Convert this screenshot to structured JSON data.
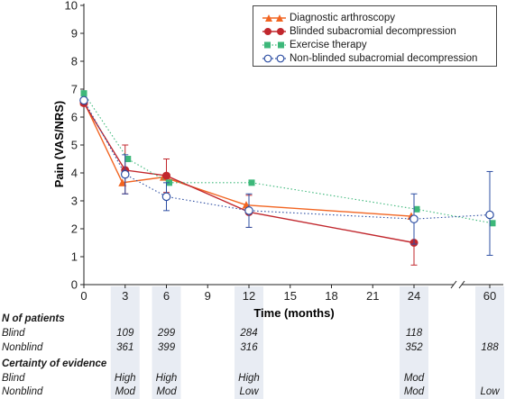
{
  "chart_data": {
    "type": "line",
    "xlabel": "Time (months)",
    "ylabel": "Pain (VAS/NRS)",
    "ylim": [
      0,
      10
    ],
    "yticks": [
      "0",
      "1",
      "2",
      "3",
      "4",
      "5",
      "6",
      "7",
      "8",
      "9",
      "10"
    ],
    "xticks": [
      "0",
      "3",
      "6",
      "9",
      "12",
      "15",
      "18",
      "21",
      "24",
      "60"
    ],
    "x_axis_break": "between 24 and 60",
    "grid": false,
    "legend_position": "top-right",
    "series": [
      {
        "name": "Diagnostic arthroscopy",
        "color": "#f26522",
        "marker": "triangle",
        "line": "solid",
        "points": [
          {
            "x": 0,
            "y": 6.55
          },
          {
            "x": 3,
            "y": 3.65
          },
          {
            "x": 6,
            "y": 3.85
          },
          {
            "x": 12,
            "y": 2.85
          },
          {
            "x": 24,
            "y": 2.45
          }
        ]
      },
      {
        "name": "Blinded subacromial decompression",
        "color": "#c1272d",
        "marker": "circle-filled",
        "line": "solid",
        "points": [
          {
            "x": 0,
            "y": 6.5,
            "err": [
              6.4,
              6.6
            ]
          },
          {
            "x": 3,
            "y": 4.1,
            "err": [
              3.25,
              5.0
            ]
          },
          {
            "x": 6,
            "y": 3.9,
            "err": [
              3.3,
              4.5
            ]
          },
          {
            "x": 12,
            "y": 2.6,
            "err": [
              2.05,
              3.2
            ]
          },
          {
            "x": 24,
            "y": 1.5,
            "err": [
              0.7,
              2.35
            ]
          }
        ]
      },
      {
        "name": "Exercise therapy",
        "color": "#3db87a",
        "marker": "square",
        "line": "dotted",
        "points": [
          {
            "x": 0,
            "y": 6.85
          },
          {
            "x": 3,
            "y": 4.5
          },
          {
            "x": 6,
            "y": 3.65
          },
          {
            "x": 12,
            "y": 3.65
          },
          {
            "x": 24,
            "y": 2.7
          },
          {
            "x": 60,
            "y": 2.2
          }
        ]
      },
      {
        "name": "Non-blinded subacromial decompression",
        "color": "#2e4fa3",
        "marker": "circle-open",
        "line": "dotted",
        "points": [
          {
            "x": 0,
            "y": 6.6
          },
          {
            "x": 3,
            "y": 3.95,
            "err": [
              3.25,
              4.65
            ]
          },
          {
            "x": 6,
            "y": 3.15,
            "err": [
              2.65,
              3.65
            ]
          },
          {
            "x": 12,
            "y": 2.65,
            "err": [
              2.05,
              3.25
            ]
          },
          {
            "x": 24,
            "y": 2.35,
            "err": [
              1.45,
              3.25
            ]
          },
          {
            "x": 60,
            "y": 2.5,
            "err": [
              1.05,
              4.05
            ]
          }
        ]
      }
    ]
  },
  "table": {
    "n_heading": "N of patients",
    "certainty_heading": "Certainty of evidence",
    "row_labels": {
      "blind": "Blind",
      "nonblind": "Nonblind"
    },
    "columns": [
      {
        "x": 3,
        "n_blind": "109",
        "n_nonblind": "361",
        "c_blind": "High",
        "c_nonblind": "Mod"
      },
      {
        "x": 6,
        "n_blind": "299",
        "n_nonblind": "399",
        "c_blind": "High",
        "c_nonblind": "Mod"
      },
      {
        "x": 12,
        "n_blind": "284",
        "n_nonblind": "316",
        "c_blind": "High",
        "c_nonblind": "Low"
      },
      {
        "x": 24,
        "n_blind": "118",
        "n_nonblind": "352",
        "c_blind": "Mod",
        "c_nonblind": "Mod"
      },
      {
        "x": 60,
        "n_blind": "",
        "n_nonblind": "188",
        "c_blind": "",
        "c_nonblind": "Low"
      }
    ]
  }
}
